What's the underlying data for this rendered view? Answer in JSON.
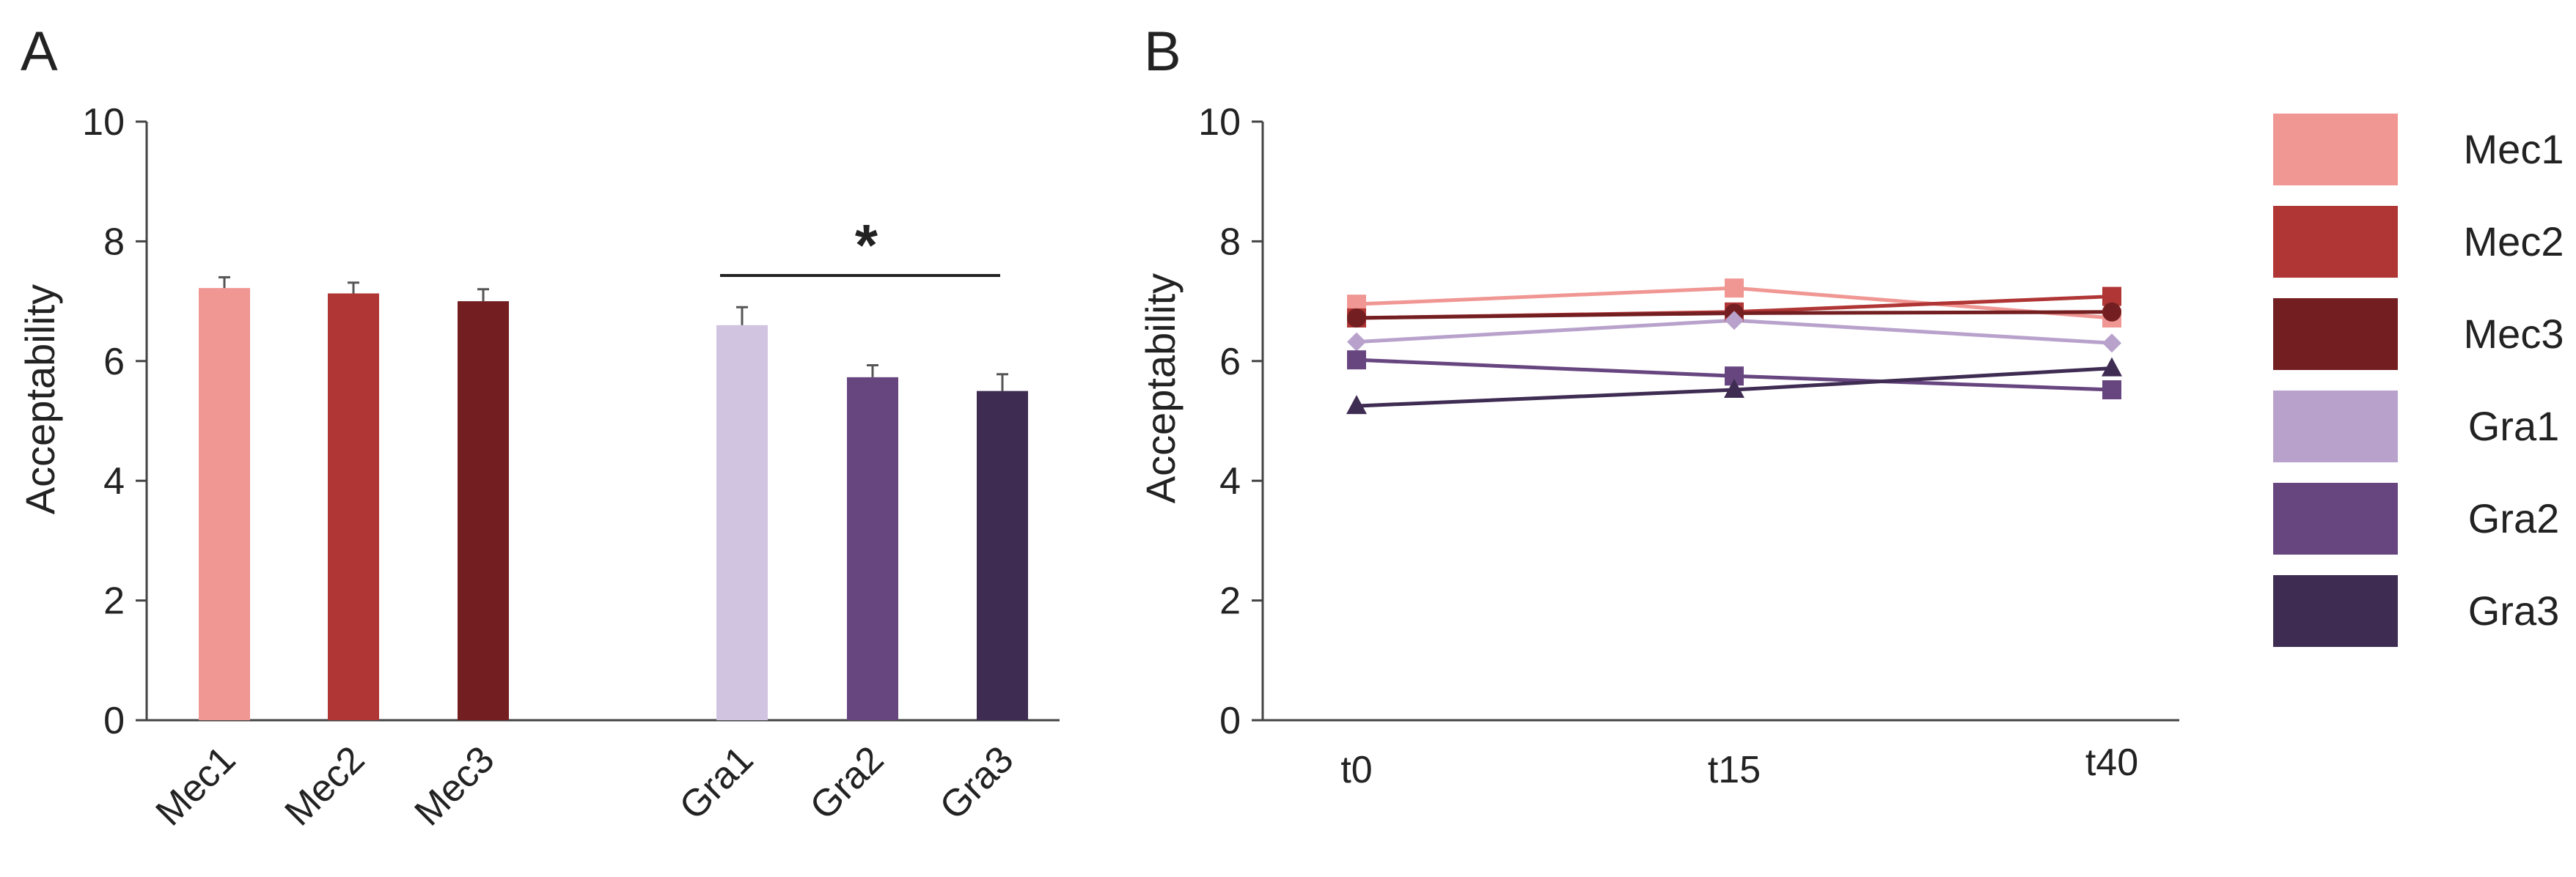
{
  "chart_data": [
    {
      "panel": "A",
      "type": "bar",
      "categories": [
        "Mec1",
        "Mec2",
        "Mec3",
        "Gra1",
        "Gra2",
        "Gra3"
      ],
      "values": [
        7.22,
        7.13,
        7.0,
        6.6,
        5.73,
        5.5
      ],
      "errors": [
        0.18,
        0.18,
        0.2,
        0.3,
        0.2,
        0.28
      ],
      "colors": [
        "#f09693",
        "#b03535",
        "#731e21",
        "#d0c4e1",
        "#674680",
        "#3f2c52"
      ],
      "xlabel": "",
      "ylabel": "Acceptability",
      "ylim": [
        0,
        10
      ],
      "yticks": [
        0,
        2,
        4,
        6,
        8,
        10
      ],
      "significance": {
        "label": "*",
        "from": "Gra1",
        "to": "Gra3"
      }
    },
    {
      "panel": "B",
      "type": "line",
      "x": [
        "t0",
        "t15",
        "t40"
      ],
      "series": [
        {
          "name": "Mec1",
          "values": [
            6.95,
            7.22,
            6.72
          ],
          "color": "#f09693",
          "marker": "square"
        },
        {
          "name": "Mec2",
          "values": [
            6.72,
            6.82,
            7.08
          ],
          "color": "#b03535",
          "marker": "square"
        },
        {
          "name": "Mec3",
          "values": [
            6.72,
            6.8,
            6.82
          ],
          "color": "#731e21",
          "marker": "circle"
        },
        {
          "name": "Gra1",
          "values": [
            6.32,
            6.68,
            6.3
          ],
          "color": "#b8a2cc",
          "marker": "diamond"
        },
        {
          "name": "Gra2",
          "values": [
            6.02,
            5.75,
            5.52
          ],
          "color": "#674680",
          "marker": "square"
        },
        {
          "name": "Gra3",
          "values": [
            5.25,
            5.52,
            5.88
          ],
          "color": "#3f2c52",
          "marker": "triangle"
        }
      ],
      "xlabel": "",
      "ylabel": "Acceptability",
      "ylim": [
        0,
        10
      ],
      "yticks": [
        0,
        2,
        4,
        6,
        8,
        10
      ],
      "legend": "right"
    }
  ]
}
